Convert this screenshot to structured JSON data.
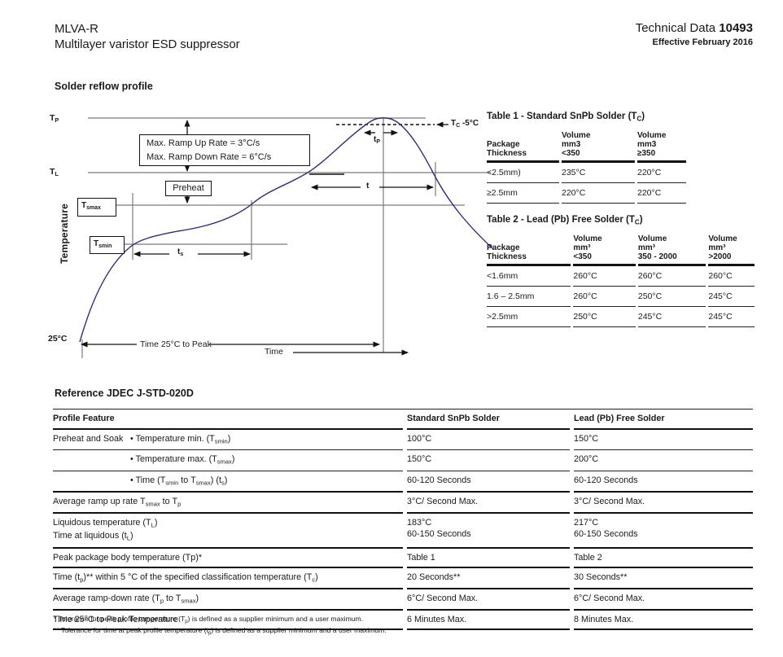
{
  "colors": {
    "curve_blue": "#2e2e80",
    "reference_line_gray": "#7a7a7a",
    "ink": "#1a1a1a",
    "background": "#ffffff"
  },
  "header": {
    "product": "MLVA-R",
    "subtitle": "Multilayer varistor ESD suppressor",
    "doc_label": "Technical Data",
    "doc_number": "10493",
    "effective": "Effective February 2016"
  },
  "sections": {
    "profile_title": "Solder reflow profile",
    "reference_title": "Reference JDEC J-STD-020D"
  },
  "chart": {
    "type": "schematic-reflow-profile",
    "y_axis_label": "Temperature",
    "x_axis_label": "Time",
    "labels": {
      "tp_level": [
        "T",
        [
          "P",
          "sub"
        ]
      ],
      "tl_level": [
        "T",
        [
          "L",
          "sub"
        ]
      ],
      "tsmax": [
        "T",
        [
          "smax",
          "sub"
        ]
      ],
      "tsmin": [
        "T",
        [
          "smin",
          "sub"
        ]
      ],
      "ts_span": [
        "t",
        [
          "s",
          "sub"
        ]
      ],
      "t_span": "t",
      "tp_span": [
        "t",
        [
          "P",
          "sub"
        ]
      ],
      "tc_minus5": [
        "T",
        [
          "C",
          "sub"
        ],
        " -5°C"
      ],
      "start_temp": "25°C",
      "time_to_peak": "Time 25°C to Peak",
      "ramp_up": "Max. Ramp Up Rate = 3°C/s",
      "ramp_down": "Max. Ramp Down Rate = 6°C/s",
      "preheat": "Preheat"
    }
  },
  "table1": {
    "title": [
      "Table 1 - Standard SnPb Solder (T",
      [
        "C",
        "sub"
      ],
      ")"
    ],
    "headers": [
      [
        "Package",
        "Thickness"
      ],
      [
        "Volume",
        "mm3",
        "<350"
      ],
      [
        "Volume",
        "mm3",
        "≥350"
      ]
    ],
    "rows": [
      [
        "<2.5mm)",
        "235°C",
        "220°C"
      ],
      [
        "≥2.5mm",
        "220°C",
        "220°C"
      ]
    ]
  },
  "table2": {
    "title": [
      "Table 2 - Lead (Pb) Free Solder (T",
      [
        "C",
        "sub"
      ],
      ")"
    ],
    "headers": [
      [
        "Package",
        "Thickness"
      ],
      [
        "Volume",
        "mm³",
        "<350"
      ],
      [
        "Volume",
        "mm³",
        "350 - 2000"
      ],
      [
        "Volume",
        "mm³",
        ">2000"
      ]
    ],
    "rows": [
      [
        "<1.6mm",
        "260°C",
        "260°C",
        "260°C"
      ],
      [
        "1.6 – 2.5mm",
        "260°C",
        "250°C",
        "245°C"
      ],
      [
        ">2.5mm",
        "250°C",
        "245°C",
        "245°C"
      ]
    ]
  },
  "jedec": {
    "col_headers": [
      "Profile Feature",
      "Standard SnPb Solder",
      "Lead (Pb) Free Solder"
    ],
    "rows": [
      {
        "group": "Preheat and Soak",
        "feature": [
          "• Temperature min. (T",
          [
            "smin",
            "sub"
          ],
          ")"
        ],
        "std": "100°C",
        "pb": "150°C"
      },
      {
        "group": "",
        "feature": [
          "• Temperature max. (T",
          [
            "smax",
            "sub"
          ],
          ")"
        ],
        "std": "150°C",
        "pb": "200°C"
      },
      {
        "group": "",
        "feature": [
          "• Time (T",
          [
            "smin",
            "sub"
          ],
          " to T",
          [
            "smax",
            "sub"
          ],
          ") (t",
          [
            "s",
            "sub"
          ],
          ")"
        ],
        "std": "60-120 Seconds",
        "pb": "60-120 Seconds"
      },
      {
        "feature": [
          "Average ramp up rate T",
          [
            "smax",
            "sub"
          ],
          " to T",
          [
            "p",
            "sub"
          ]
        ],
        "std": "3°C/ Second Max.",
        "pb": "3°C/ Second Max."
      },
      {
        "feature": [
          "Liquidous temperature (T",
          [
            "L",
            "sub"
          ],
          ")"
        ],
        "feature2": [
          "Time at liquidous (t",
          [
            "L",
            "sub"
          ],
          ")"
        ],
        "std": "183°C",
        "std2": "60-150 Seconds",
        "pb": "217°C",
        "pb2": "60-150 Seconds"
      },
      {
        "feature": [
          "Peak package body temperature (Tp)*"
        ],
        "std": "Table 1",
        "pb": "Table 2"
      },
      {
        "feature": [
          "Time (t",
          [
            "p",
            "sub"
          ],
          ")** within 5 °C of the specified classification temperature (T",
          [
            "c",
            "sub"
          ],
          ")"
        ],
        "std": "20 Seconds**",
        "pb": "30 Seconds**"
      },
      {
        "feature": [
          "Average ramp-down rate (T",
          [
            "p",
            "sub"
          ],
          " to T",
          [
            "smax",
            "sub"
          ],
          ")"
        ],
        "std": "6°C/ Second Max.",
        "pb": "6°C/ Second Max."
      },
      {
        "feature": [
          "Time 25°C to Peak Temperature"
        ],
        "std": "6 Minutes Max.",
        "pb": "8 Minutes Max."
      }
    ]
  },
  "footnotes": [
    [
      "* Tolerance for peak profile temperature (T",
      [
        "p",
        "sub"
      ],
      ") is defined as a supplier minimum and a user maximum."
    ],
    [
      "** Tolerance for time at peak profile temperature (t",
      [
        "p",
        "sub"
      ],
      ") is defined as a supplier minimum and a user maximum."
    ]
  ]
}
